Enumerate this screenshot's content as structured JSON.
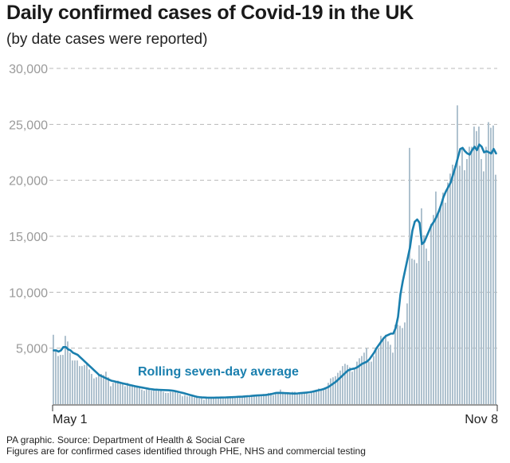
{
  "title": "Daily confirmed cases of Covid-19 in the UK",
  "subtitle": "(by date cases were reported)",
  "footer": {
    "source": "PA graphic. Source: Department of Health & Social Care",
    "note": "Figures are for confirmed cases identified through PHE, NHS and commercial testing"
  },
  "colors": {
    "bars": "#a9bdcb",
    "line": "#1a7fae",
    "grid": "#b8b8b8",
    "axis": "#333333"
  },
  "chart_data": {
    "type": "bar",
    "title": "Daily confirmed cases of Covid-19 in the UK",
    "subtitle": "(by date cases were reported)",
    "x_start": "2020-05-01",
    "x_end": "2020-11-08",
    "x_ticks": [
      "May 1",
      "Nov 8"
    ],
    "y_ticks": [
      "5,000",
      "10,000",
      "15,000",
      "20,000",
      "25,000",
      "30,000"
    ],
    "y_tick_values": [
      5000,
      10000,
      15000,
      20000,
      25000,
      30000
    ],
    "ylim": [
      0,
      30000
    ],
    "grid": true,
    "annotation": "Rolling seven-day average",
    "series": [
      {
        "type": "bar",
        "values": [
          6200,
          4800,
          4300,
          4400,
          4400,
          6100,
          5600,
          4600,
          3900,
          3900,
          3900,
          3400,
          3400,
          3500,
          3600,
          3100,
          2700,
          2300,
          2400,
          2600,
          2700,
          2600,
          2900,
          2400,
          1600,
          1900,
          2000,
          2100,
          2000,
          1900,
          1600,
          1900,
          1700,
          1600,
          1700,
          1600,
          1500,
          1300,
          1200,
          1300,
          1300,
          1200,
          1200,
          1200,
          1300,
          1200,
          1100,
          1000,
          1000,
          1100,
          1100,
          1100,
          1000,
          900,
          700,
          800,
          700,
          700,
          700,
          600,
          600,
          500,
          500,
          400,
          500,
          500,
          600,
          600,
          600,
          600,
          600,
          600,
          500,
          600,
          600,
          600,
          600,
          600,
          700,
          700,
          700,
          700,
          700,
          700,
          800,
          800,
          800,
          800,
          900,
          800,
          1000,
          1000,
          800,
          1000,
          1100,
          1300,
          1100,
          1000,
          1000,
          900,
          1100,
          1100,
          1000,
          900,
          1000,
          1000,
          1000,
          900,
          1000,
          1100,
          1300,
          1400,
          1300,
          1300,
          1500,
          1900,
          2300,
          2400,
          2500,
          2800,
          3000,
          3400,
          3600,
          3500,
          3300,
          2900,
          3200,
          3800,
          4100,
          4300,
          4600,
          5000,
          3800,
          3800,
          4300,
          4800,
          5000,
          6100,
          5900,
          6200,
          5600,
          5300,
          4600,
          7100,
          7100,
          7000,
          6800,
          7300,
          9000,
          22900,
          13000,
          12900,
          12600,
          14200,
          17500,
          15100,
          13900,
          12800,
          16100,
          16900,
          19000,
          17200,
          17700,
          18900,
          18000,
          19800,
          20600,
          21400,
          21300,
          26700,
          21300,
          22900,
          20900,
          21900,
          23000,
          23000,
          24800,
          24400,
          24800,
          21900,
          20800,
          23000,
          25200,
          24700,
          24900,
          20500
        ]
      },
      {
        "name": "Rolling seven-day average",
        "type": "line",
        "values": [
          4800,
          4800,
          4700,
          4800,
          5100,
          5100,
          4900,
          4800,
          4600,
          4500,
          4400,
          4200,
          4000,
          3800,
          3600,
          3400,
          3200,
          3000,
          2800,
          2600,
          2500,
          2400,
          2300,
          2200,
          2100,
          2050,
          2000,
          1950,
          1900,
          1850,
          1800,
          1750,
          1700,
          1650,
          1600,
          1560,
          1520,
          1480,
          1440,
          1400,
          1360,
          1330,
          1300,
          1290,
          1280,
          1270,
          1260,
          1250,
          1240,
          1220,
          1200,
          1150,
          1100,
          1050,
          1000,
          940,
          880,
          820,
          760,
          700,
          650,
          620,
          600,
          590,
          580,
          575,
          570,
          575,
          580,
          585,
          590,
          595,
          600,
          610,
          620,
          630,
          640,
          650,
          660,
          670,
          690,
          710,
          720,
          740,
          760,
          780,
          790,
          800,
          810,
          830,
          860,
          900,
          950,
          1000,
          1010,
          1000,
          990,
          980,
          970,
          960,
          950,
          950,
          960,
          980,
          1000,
          1020,
          1040,
          1060,
          1100,
          1150,
          1200,
          1250,
          1300,
          1360,
          1450,
          1550,
          1700,
          1850,
          2000,
          2200,
          2400,
          2600,
          2800,
          3000,
          3100,
          3150,
          3200,
          3300,
          3450,
          3600,
          3700,
          3800,
          4000,
          4300,
          4600,
          5000,
          5300,
          5600,
          5900,
          6100,
          6200,
          6300,
          6300,
          6800,
          7800,
          9800,
          11000,
          12000,
          13000,
          14000,
          15500,
          16300,
          16500,
          16200,
          14300,
          14500,
          15000,
          15500,
          16000,
          16300,
          16700,
          17200,
          17800,
          18500,
          19000,
          19400,
          19800,
          20500,
          21200,
          22000,
          22800,
          22900,
          22600,
          22400,
          22300,
          22700,
          23000,
          22700,
          23200,
          23000,
          22500,
          22600,
          22500,
          22400,
          22800,
          22400
        ]
      }
    ]
  }
}
